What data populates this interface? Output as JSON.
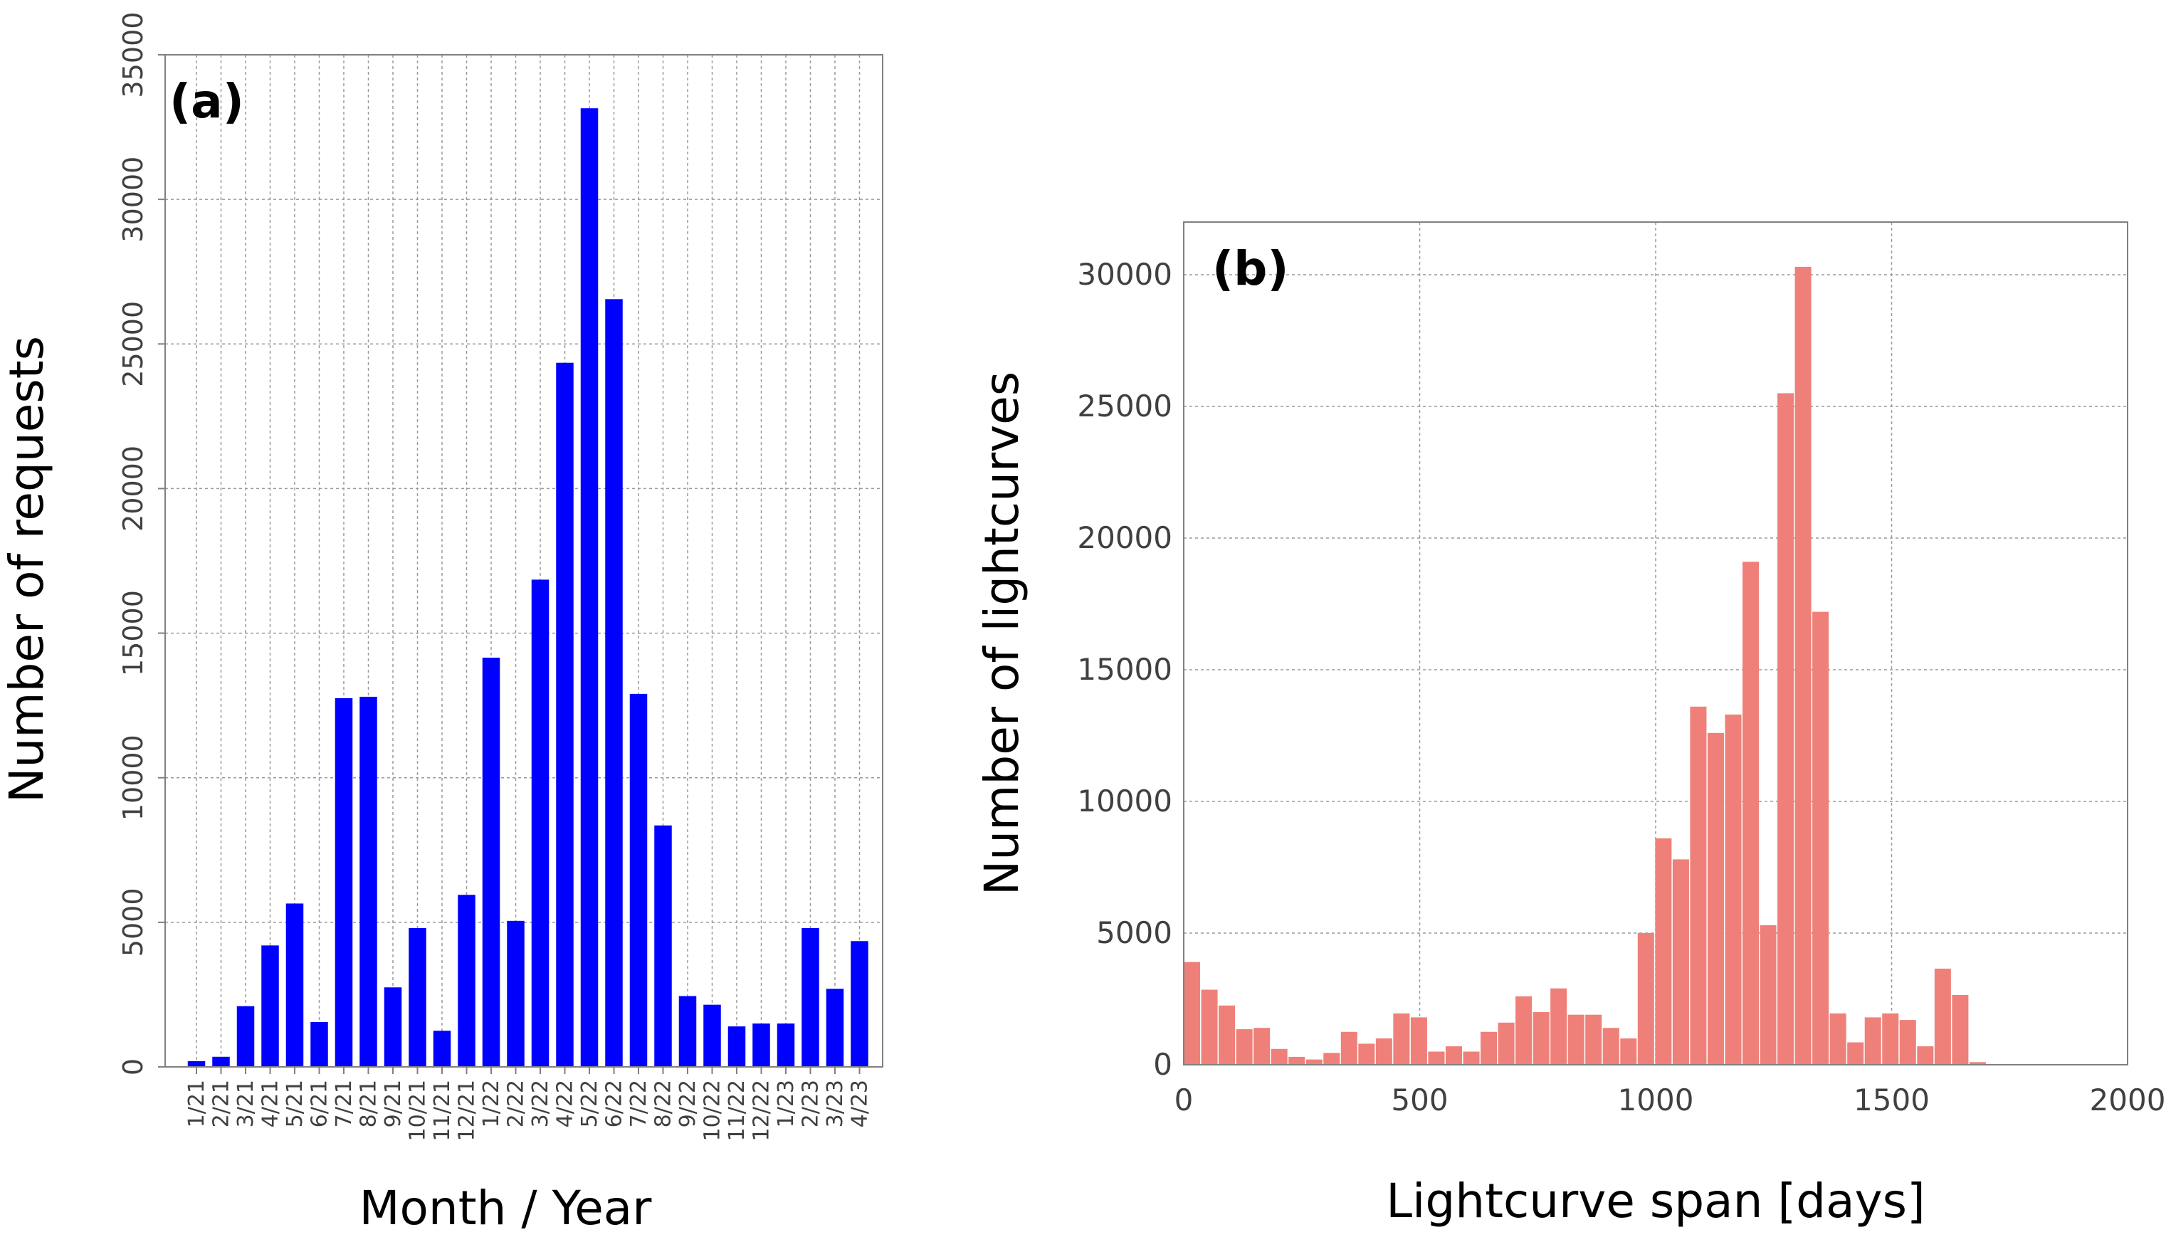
{
  "chart_data": [
    {
      "type": "bar",
      "panel_label": "(a)",
      "title": "",
      "xlabel": "Month / Year",
      "ylabel": "Number of requests",
      "ylim": [
        0,
        35000
      ],
      "yticks": [
        "0",
        "5000",
        "10000",
        "15000",
        "20000",
        "25000",
        "30000",
        "35000"
      ],
      "grid": true,
      "bar_color": "#0000ff",
      "categories": [
        "1/21",
        "2/21",
        "3/21",
        "4/21",
        "5/21",
        "6/21",
        "7/21",
        "8/21",
        "9/21",
        "10/21",
        "11/21",
        "12/21",
        "1/22",
        "2/22",
        "3/22",
        "4/22",
        "5/22",
        "6/22",
        "7/22",
        "8/22",
        "9/22",
        "10/22",
        "11/22",
        "12/22",
        "1/23",
        "2/23",
        "3/23",
        "4/23"
      ],
      "values": [
        200,
        350,
        2100,
        4200,
        5650,
        1550,
        12750,
        12800,
        2750,
        4800,
        1250,
        5950,
        14150,
        5050,
        16850,
        24350,
        33150,
        26550,
        12900,
        8350,
        2450,
        2150,
        1400,
        1500,
        1500,
        4800,
        2700,
        4350
      ]
    },
    {
      "type": "bar",
      "subtype": "histogram",
      "panel_label": "(b)",
      "title": "",
      "xlabel": "Lightcurve span [days]",
      "ylabel": "Number of lightcurves",
      "xlim": [
        0,
        2000
      ],
      "ylim": [
        0,
        32000
      ],
      "xticks": [
        "0",
        "500",
        "1000",
        "1500",
        "2000"
      ],
      "yticks": [
        "0",
        "5000",
        "10000",
        "15000",
        "20000",
        "25000",
        "30000"
      ],
      "grid": true,
      "bar_color": "#ef8079",
      "bin_width": 37,
      "bin_start": 0,
      "values": [
        3900,
        2850,
        2250,
        1350,
        1400,
        600,
        300,
        200,
        450,
        1250,
        800,
        1000,
        1950,
        1800,
        500,
        700,
        500,
        1250,
        1600,
        2600,
        2000,
        2900,
        1900,
        1900,
        1400,
        1000,
        5000,
        8600,
        7800,
        13600,
        12600,
        13300,
        19100,
        5300,
        25500,
        30300,
        17200,
        1950,
        850,
        1800,
        1950,
        1700,
        700,
        3650,
        2650,
        100
      ]
    }
  ]
}
